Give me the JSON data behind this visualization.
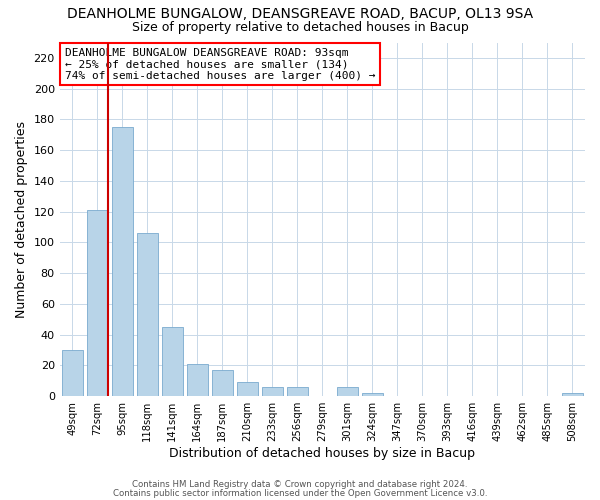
{
  "title": "DEANHOLME BUNGALOW, DEANSGREAVE ROAD, BACUP, OL13 9SA",
  "subtitle": "Size of property relative to detached houses in Bacup",
  "xlabel": "Distribution of detached houses by size in Bacup",
  "ylabel": "Number of detached properties",
  "bar_color": "#b8d4e8",
  "vline_color": "#cc0000",
  "categories": [
    "49sqm",
    "72sqm",
    "95sqm",
    "118sqm",
    "141sqm",
    "164sqm",
    "187sqm",
    "210sqm",
    "233sqm",
    "256sqm",
    "279sqm",
    "301sqm",
    "324sqm",
    "347sqm",
    "370sqm",
    "393sqm",
    "416sqm",
    "439sqm",
    "462sqm",
    "485sqm",
    "508sqm"
  ],
  "values": [
    30,
    121,
    175,
    106,
    45,
    21,
    17,
    9,
    6,
    6,
    0,
    6,
    2,
    0,
    0,
    0,
    0,
    0,
    0,
    0,
    2
  ],
  "ylim": [
    0,
    230
  ],
  "yticks": [
    0,
    20,
    40,
    60,
    80,
    100,
    120,
    140,
    160,
    180,
    200,
    220
  ],
  "annotation_title": "DEANHOLME BUNGALOW DEANSGREAVE ROAD: 93sqm",
  "annotation_line2": "← 25% of detached houses are smaller (134)",
  "annotation_line3": "74% of semi-detached houses are larger (400) →",
  "footer_line1": "Contains HM Land Registry data © Crown copyright and database right 2024.",
  "footer_line2": "Contains public sector information licensed under the Open Government Licence v3.0.",
  "background_color": "#ffffff",
  "grid_color": "#c8d8e8",
  "title_fontsize": 10,
  "subtitle_fontsize": 9,
  "vline_index": 1
}
